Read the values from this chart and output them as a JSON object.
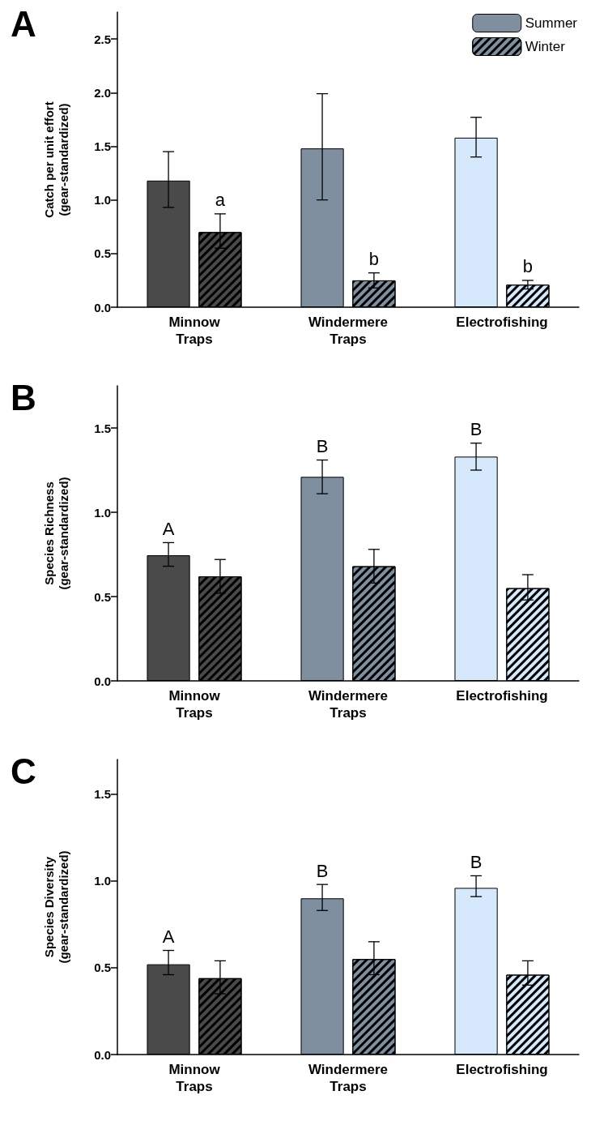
{
  "chart_data": [
    {
      "type": "bar",
      "title": "A",
      "ylabel": "Catch per unit effort\n(gear-standardized)",
      "categories": [
        "Minnow Traps",
        "Windermere Traps",
        "Electrofishing"
      ],
      "ylim": [
        0,
        2.75
      ],
      "yticks": [
        {
          "value": 0,
          "label": "0.0"
        },
        0.5,
        {
          "value": 1,
          "label": "1.0"
        },
        1.5,
        {
          "value": 2,
          "label": "2.0"
        },
        2.5
      ],
      "grid": false,
      "legend": "top right",
      "series": [
        {
          "name": "Summer",
          "color": "#7f8fa0",
          "colors": [
            "#4a4a4a",
            "#7f8fa0",
            "#d6e8fb"
          ],
          "values": [
            1.18,
            1.48,
            1.58
          ],
          "errors": [
            [
              0.93,
              1.45
            ],
            [
              1.0,
              1.99
            ],
            [
              1.4,
              1.77
            ]
          ]
        },
        {
          "name": "Winter",
          "color": "#7f8fa0",
          "colors": [
            "#4a4a4a",
            "#7f8fa0",
            "#d6e8fb"
          ],
          "values": [
            0.7,
            0.25,
            0.21
          ],
          "errors": [
            [
              0.55,
              0.87
            ],
            [
              0.18,
              0.32
            ],
            [
              0.17,
              0.25
            ]
          ]
        }
      ],
      "annotations": [
        "a",
        "b",
        "b"
      ]
    },
    {
      "type": "bar",
      "title": "B",
      "ylabel": "Species Richness\n(gear-standardized)",
      "categories": [
        "Minnow Traps",
        "Windermere Traps",
        "Electrofishing"
      ],
      "ylim": [
        0,
        1.75
      ],
      "yticks": [
        {
          "value": 0,
          "label": "0.0"
        },
        0.5,
        {
          "value": 1,
          "label": "1.0"
        },
        1.5
      ],
      "grid": false,
      "series": [
        {
          "color": "#7f8fa0",
          "colors": [
            "#4a4a4a",
            "#7f8fa0",
            "#d6e8fb"
          ],
          "values": [
            0.745,
            1.21,
            1.33
          ],
          "errors": [
            [
              0.68,
              0.82
            ],
            [
              1.11,
              1.31
            ],
            [
              1.25,
              1.41
            ]
          ]
        },
        {
          "color": "#7f8fa0",
          "colors": [
            "#4a4a4a",
            "#7f8fa0",
            "#d6e8fb"
          ],
          "values": [
            0.62,
            0.68,
            0.55
          ],
          "errors": [
            [
              0.52,
              0.72
            ],
            [
              0.58,
              0.78
            ],
            [
              0.48,
              0.63
            ]
          ]
        }
      ],
      "annotations": [
        "A",
        "B",
        "B"
      ]
    },
    {
      "type": "bar",
      "title": "C",
      "ylabel": "Species Diversity\n(gear-standardized)",
      "categories": [
        "Minnow Traps",
        "Windermere Traps",
        "Electrofishing"
      ],
      "ylim": [
        0,
        1.7
      ],
      "yticks": [
        {
          "value": 0,
          "label": "0.0"
        },
        0.5,
        {
          "value": 1,
          "label": "1.0"
        },
        1.5
      ],
      "grid": false,
      "series": [
        {
          "color": "#7f8fa0",
          "colors": [
            "#4a4a4a",
            "#7f8fa0",
            "#d6e8fb"
          ],
          "values": [
            0.52,
            0.9,
            0.96
          ],
          "errors": [
            [
              0.46,
              0.6
            ],
            [
              0.83,
              0.98
            ],
            [
              0.91,
              1.03
            ]
          ]
        },
        {
          "color": "#7f8fa0",
          "colors": [
            "#4a4a4a",
            "#7f8fa0",
            "#d6e8fb"
          ],
          "values": [
            0.44,
            0.55,
            0.46
          ],
          "errors": [
            [
              0.35,
              0.54
            ],
            [
              0.46,
              0.65
            ],
            [
              0.4,
              0.54
            ]
          ]
        }
      ],
      "annotations": [
        "A",
        "B",
        "B"
      ]
    }
  ]
}
